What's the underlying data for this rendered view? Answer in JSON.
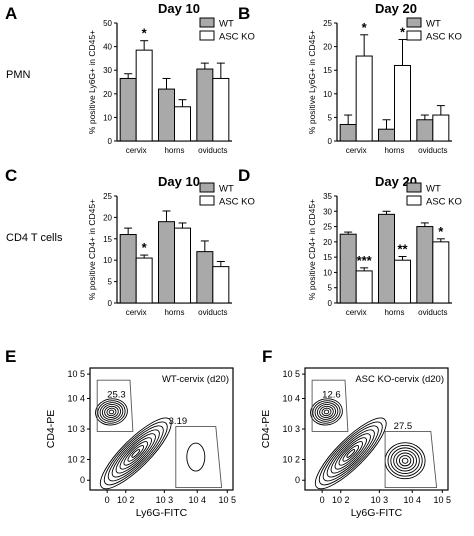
{
  "colors": {
    "wt": "#a9a9a9",
    "ko": "#ffffff",
    "stroke": "#000000"
  },
  "row_labels": {
    "pmn": "PMN",
    "cd4": "CD4 T cells"
  },
  "chart_data": [
    {
      "id": "A",
      "letter": "A",
      "type": "bar",
      "title": "Day 10",
      "ylabel": "% positive Ly6G+ in CD45+",
      "categories": [
        "cervix",
        "horns",
        "oviducts"
      ],
      "ylim": [
        0,
        50
      ],
      "yticks": [
        "0",
        "10",
        "20",
        "30",
        "40",
        "50"
      ],
      "legend": "top-right",
      "series": [
        {
          "name": "WT",
          "values": [
            26.5,
            22,
            30.5
          ],
          "errors": [
            2,
            4.5,
            2.5
          ]
        },
        {
          "name": "ASC KO",
          "values": [
            38.5,
            14.5,
            26.5
          ],
          "errors": [
            4,
            3,
            6.5
          ]
        }
      ],
      "annotations": [
        {
          "category": 0,
          "series": 1,
          "text": "*"
        }
      ]
    },
    {
      "id": "B",
      "letter": "B",
      "type": "bar",
      "title": "Day 20",
      "ylabel": "% positive Ly6G+ in CD45+",
      "categories": [
        "cervix",
        "horns",
        "oviducts"
      ],
      "ylim": [
        0,
        25
      ],
      "yticks": [
        "0",
        "5",
        "10",
        "15",
        "20",
        "25"
      ],
      "legend": "top-right",
      "series": [
        {
          "name": "WT",
          "values": [
            3.5,
            2.5,
            4.5
          ],
          "errors": [
            2,
            2,
            1
          ]
        },
        {
          "name": "ASC KO",
          "values": [
            18,
            16,
            5.5
          ],
          "errors": [
            4.5,
            5.5,
            2
          ]
        }
      ],
      "annotations": [
        {
          "category": 0,
          "series": 1,
          "text": "*"
        },
        {
          "category": 1,
          "series": 1,
          "text": "*"
        }
      ]
    },
    {
      "id": "C",
      "letter": "C",
      "type": "bar",
      "title": "Day 10",
      "ylabel": "% positive CD4+ in CD45+",
      "categories": [
        "cervix",
        "horns",
        "oviducts"
      ],
      "ylim": [
        0,
        25
      ],
      "yticks": [
        "0",
        "5",
        "10",
        "15",
        "20",
        "25"
      ],
      "legend": "top-right",
      "series": [
        {
          "name": "WT",
          "values": [
            16,
            19,
            12
          ],
          "errors": [
            1.5,
            2.5,
            2.5
          ]
        },
        {
          "name": "ASC KO",
          "values": [
            10.5,
            17.5,
            8.5
          ],
          "errors": [
            0.7,
            1.2,
            1.2
          ]
        }
      ],
      "annotations": [
        {
          "category": 0,
          "series": 1,
          "text": "*"
        }
      ]
    },
    {
      "id": "D",
      "letter": "D",
      "type": "bar",
      "title": "Day 20",
      "ylabel": "% positive CD4+ in CD45+",
      "categories": [
        "cervix",
        "horns",
        "oviducts"
      ],
      "ylim": [
        0,
        35
      ],
      "yticks": [
        "0",
        "5",
        "10",
        "15",
        "20",
        "25",
        "30",
        "35"
      ],
      "legend": "top-right",
      "series": [
        {
          "name": "WT",
          "values": [
            22.5,
            29,
            25
          ],
          "errors": [
            0.7,
            1,
            1.2
          ]
        },
        {
          "name": "ASC KO",
          "values": [
            10.5,
            14,
            20
          ],
          "errors": [
            1,
            1.2,
            1
          ]
        }
      ],
      "annotations": [
        {
          "category": 0,
          "series": 1,
          "text": "***"
        },
        {
          "category": 1,
          "series": 1,
          "text": "**"
        },
        {
          "category": 2,
          "series": 1,
          "text": "*"
        }
      ]
    },
    {
      "id": "E",
      "letter": "E",
      "type": "scatter",
      "title": "WT-cervix (d20)",
      "xlabel": "Ly6G-FITC",
      "ylabel": "CD4-PE",
      "xticks": [
        "0",
        "10 2",
        "10 3",
        "10 4",
        "10 5"
      ],
      "yticks": [
        "0",
        "10 2",
        "10 3",
        "10 4",
        "10 5"
      ],
      "gates": [
        {
          "name": "CD4+",
          "value": "25.3"
        },
        {
          "name": "Ly6G+",
          "value": "3.19"
        }
      ]
    },
    {
      "id": "F",
      "letter": "F",
      "type": "scatter",
      "title": "ASC KO-cervix (d20)",
      "xlabel": "Ly6G-FITC",
      "ylabel": "CD4-PE",
      "xticks": [
        "0",
        "10 2",
        "10 3",
        "10 4",
        "10 5"
      ],
      "yticks": [
        "0",
        "10 2",
        "10 3",
        "10 4",
        "10 5"
      ],
      "gates": [
        {
          "name": "CD4+",
          "value": "12.6"
        },
        {
          "name": "Ly6G+",
          "value": "27.5"
        }
      ]
    }
  ]
}
